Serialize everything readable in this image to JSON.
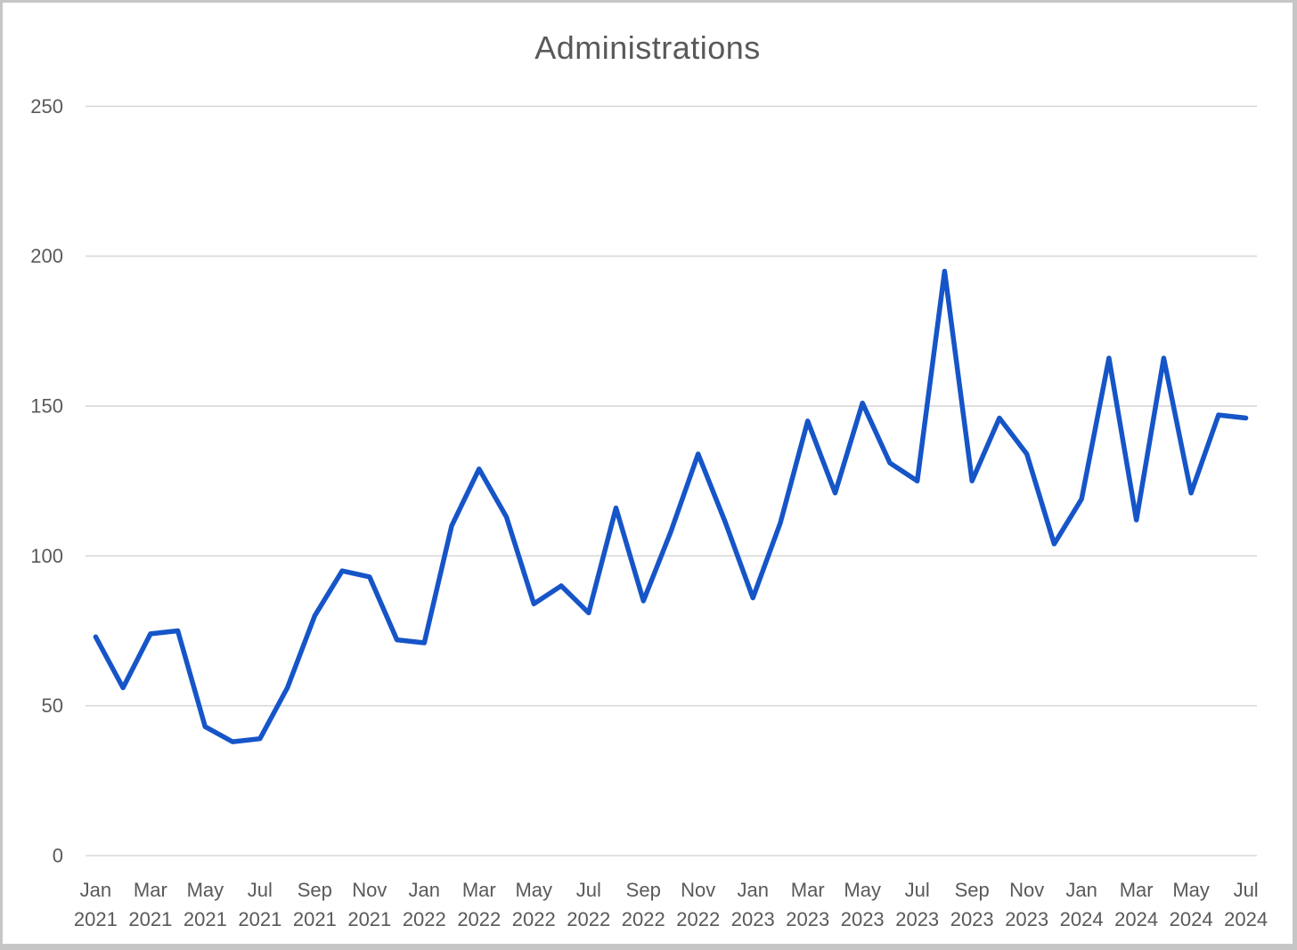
{
  "chart_data": {
    "type": "line",
    "title": "Administrations",
    "legend": "none",
    "grid": true,
    "background": "#FFFFFF",
    "title_color": "#595959",
    "label_color": "#595959",
    "gridline_color": "#D9D9D9",
    "line_color": "#1655C8",
    "ylim": [
      0,
      250
    ],
    "yticks": [
      0,
      50,
      100,
      150,
      200,
      250
    ],
    "x_tick_every": 2,
    "categories": [
      "Jan 2021",
      "Feb 2021",
      "Mar 2021",
      "Apr 2021",
      "May 2021",
      "Jun 2021",
      "Jul 2021",
      "Aug 2021",
      "Sep 2021",
      "Oct 2021",
      "Nov 2021",
      "Dec 2021",
      "Jan 2022",
      "Feb 2022",
      "Mar 2022",
      "Apr 2022",
      "May 2022",
      "Jun 2022",
      "Jul 2022",
      "Aug 2022",
      "Sep 2022",
      "Oct 2022",
      "Nov 2022",
      "Dec 2022",
      "Jan 2023",
      "Feb 2023",
      "Mar 2023",
      "Apr 2023",
      "May 2023",
      "Jun 2023",
      "Jul 2023",
      "Aug 2023",
      "Sep 2023",
      "Oct 2023",
      "Nov 2023",
      "Dec 2023",
      "Jan 2024",
      "Feb 2024",
      "Mar 2024",
      "Apr 2024",
      "May 2024",
      "Jun 2024",
      "Jul 2024"
    ],
    "series": [
      {
        "name": "Administrations",
        "values": [
          73,
          56,
          74,
          75,
          43,
          38,
          39,
          56,
          80,
          95,
          93,
          72,
          71,
          110,
          129,
          113,
          84,
          90,
          81,
          116,
          85,
          108,
          134,
          111,
          86,
          111,
          145,
          121,
          151,
          131,
          125,
          195,
          125,
          146,
          134,
          104,
          119,
          166,
          112,
          166,
          121,
          147,
          146
        ]
      }
    ]
  }
}
